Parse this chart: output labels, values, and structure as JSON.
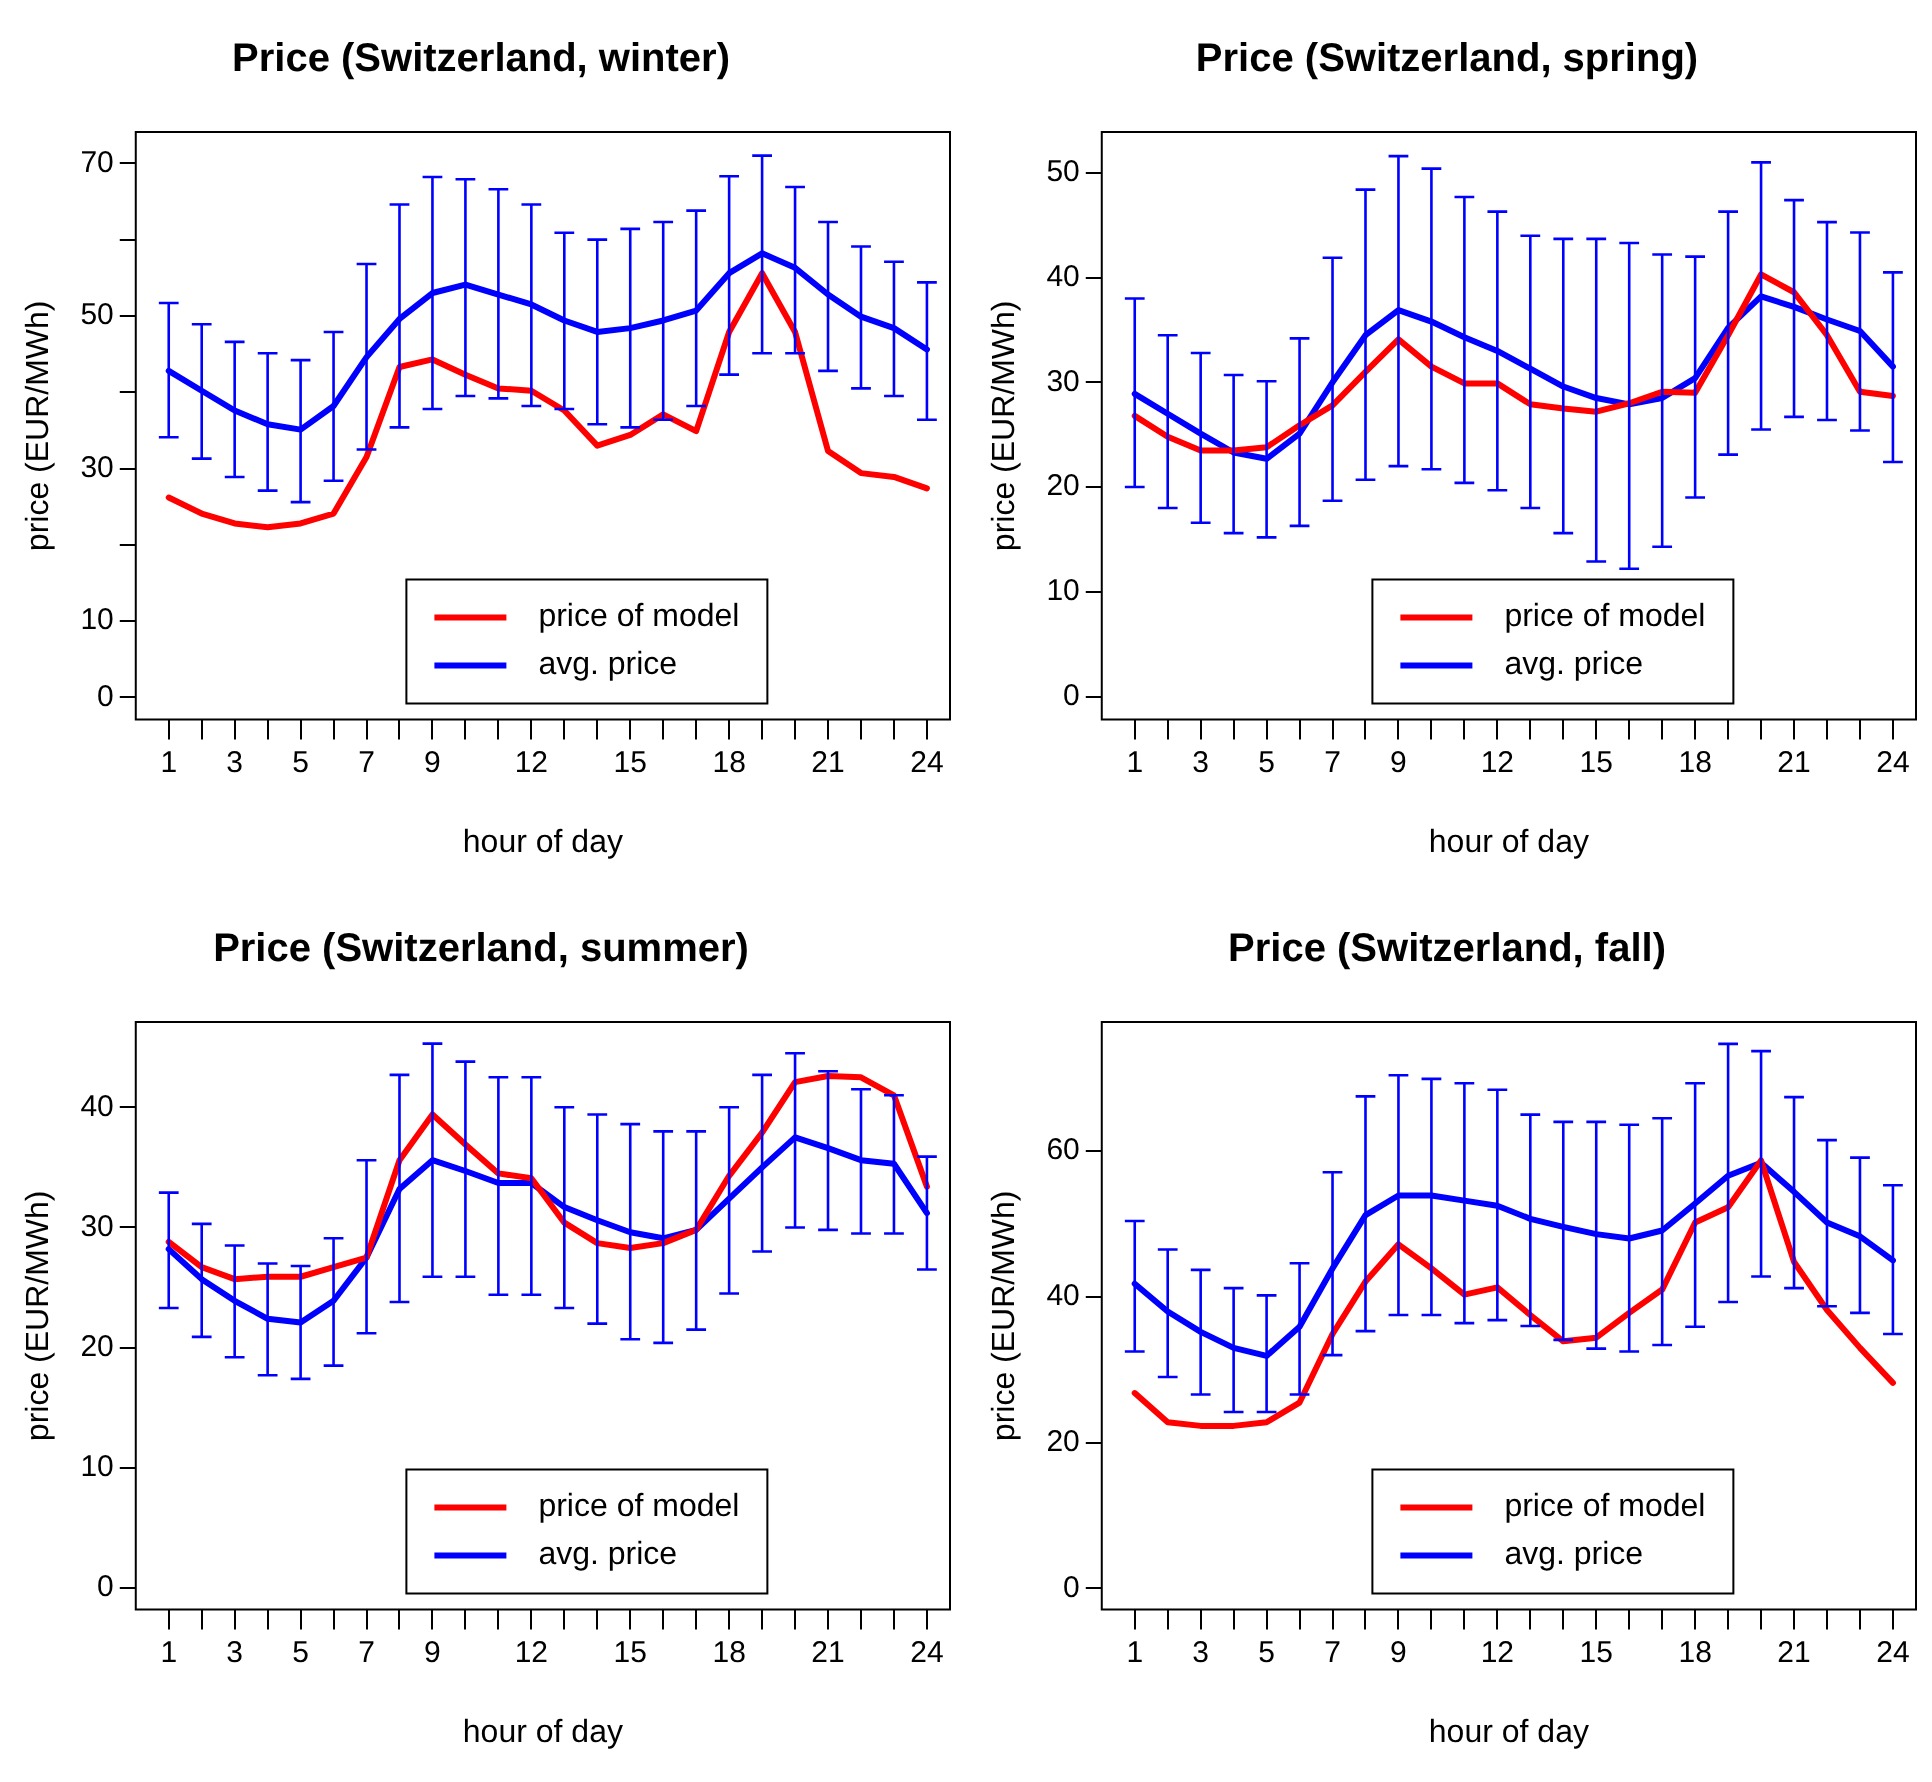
{
  "chart_data": [
    {
      "type": "line",
      "title": "Price (Switzerland, winter)",
      "xlabel": "hour of day",
      "ylabel": "price (EUR/MWh)",
      "legend": "bottom",
      "x": [
        1,
        2,
        3,
        4,
        5,
        6,
        7,
        8,
        9,
        10,
        11,
        12,
        13,
        14,
        15,
        16,
        17,
        18,
        19,
        20,
        21,
        22,
        23,
        24
      ],
      "xlim": [
        0,
        24.7
      ],
      "xticks": [
        1,
        {
          "value": 2,
          "label": null
        },
        3,
        {
          "value": 4,
          "label": null
        },
        5,
        {
          "value": 6,
          "label": null
        },
        7,
        {
          "value": 8,
          "label": null
        },
        9,
        {
          "value": 10,
          "label": null
        },
        {
          "value": 11,
          "label": null
        },
        12,
        {
          "value": 13,
          "label": null
        },
        {
          "value": 14,
          "label": null
        },
        15,
        {
          "value": 16,
          "label": null
        },
        {
          "value": 17,
          "label": null
        },
        18,
        {
          "value": 19,
          "label": null
        },
        {
          "value": 20,
          "label": null
        },
        21,
        {
          "value": 22,
          "label": null
        },
        {
          "value": 23,
          "label": null
        },
        24
      ],
      "ylim": [
        -2.9,
        74.1
      ],
      "yticks": [
        0,
        10,
        {
          "value": 20,
          "label": null
        },
        30,
        {
          "value": 40,
          "label": null
        },
        50,
        {
          "value": 60,
          "label": null
        },
        70
      ],
      "series": [
        {
          "name": "price of model",
          "color": "#ff0000",
          "values": [
            26.2,
            24.1,
            22.8,
            22.3,
            22.8,
            24.1,
            31.5,
            43.3,
            44.3,
            42.3,
            40.5,
            40.2,
            37.6,
            33.0,
            34.4,
            37.1,
            34.9,
            47.9,
            55.6,
            47.9,
            32.3,
            29.4,
            28.9,
            27.4
          ]
        },
        {
          "name": "avg. price",
          "color": "#0000ff",
          "values": [
            42.8,
            40.2,
            37.6,
            35.8,
            35.1,
            38.2,
            44.6,
            49.6,
            53.0,
            54.1,
            52.8,
            51.5,
            49.4,
            47.9,
            48.4,
            49.4,
            50.7,
            55.6,
            58.2,
            56.3,
            52.8,
            49.9,
            48.4,
            45.6
          ],
          "errors": [
            [
              34.1,
              51.7
            ],
            [
              31.3,
              48.9
            ],
            [
              28.9,
              46.6
            ],
            [
              27.1,
              45.1
            ],
            [
              25.6,
              44.2
            ],
            [
              28.4,
              47.9
            ],
            [
              32.5,
              56.8
            ],
            [
              35.4,
              64.6
            ],
            [
              37.8,
              68.2
            ],
            [
              39.5,
              67.9
            ],
            [
              39.2,
              66.6
            ],
            [
              38.2,
              64.6
            ],
            [
              37.8,
              60.9
            ],
            [
              35.8,
              60.0
            ],
            [
              35.4,
              61.4
            ],
            [
              36.4,
              62.3
            ],
            [
              38.2,
              63.8
            ],
            [
              42.3,
              68.3
            ],
            [
              45.1,
              71.0
            ],
            [
              45.1,
              66.9
            ],
            [
              42.8,
              62.3
            ],
            [
              40.5,
              59.1
            ],
            [
              39.5,
              57.1
            ],
            [
              36.4,
              54.4
            ]
          ]
        }
      ]
    },
    {
      "type": "line",
      "title": "Price (Switzerland, spring)",
      "xlabel": "hour of day",
      "ylabel": "price (EUR/MWh)",
      "legend": "bottom",
      "x": [
        1,
        2,
        3,
        4,
        5,
        6,
        7,
        8,
        9,
        10,
        11,
        12,
        13,
        14,
        15,
        16,
        17,
        18,
        19,
        20,
        21,
        22,
        23,
        24
      ],
      "xlim": [
        0,
        24.7
      ],
      "xticks": [
        1,
        {
          "value": 2,
          "label": null
        },
        3,
        {
          "value": 4,
          "label": null
        },
        5,
        {
          "value": 6,
          "label": null
        },
        7,
        {
          "value": 8,
          "label": null
        },
        9,
        {
          "value": 10,
          "label": null
        },
        {
          "value": 11,
          "label": null
        },
        12,
        {
          "value": 13,
          "label": null
        },
        {
          "value": 14,
          "label": null
        },
        15,
        {
          "value": 16,
          "label": null
        },
        {
          "value": 17,
          "label": null
        },
        18,
        {
          "value": 19,
          "label": null
        },
        {
          "value": 20,
          "label": null
        },
        21,
        {
          "value": 22,
          "label": null
        },
        {
          "value": 23,
          "label": null
        },
        24
      ],
      "ylim": [
        -2.2,
        53.9
      ],
      "yticks": [
        0,
        10,
        20,
        30,
        40,
        50
      ],
      "series": [
        {
          "name": "price of model",
          "color": "#ff0000",
          "values": [
            26.8,
            24.8,
            23.5,
            23.5,
            23.8,
            25.9,
            27.8,
            31.0,
            34.1,
            31.5,
            29.9,
            29.9,
            27.9,
            27.5,
            27.2,
            28.0,
            29.1,
            29.0,
            34.5,
            40.3,
            38.6,
            34.5,
            29.1,
            28.7
          ]
        },
        {
          "name": "avg. price",
          "color": "#0000ff",
          "values": [
            28.9,
            27.0,
            25.1,
            23.3,
            22.7,
            25.1,
            30.0,
            34.5,
            36.9,
            35.8,
            34.3,
            33.0,
            31.3,
            29.6,
            28.5,
            27.9,
            28.5,
            30.4,
            35.2,
            38.2,
            37.2,
            36.0,
            34.9,
            31.5
          ],
          "errors": [
            [
              20.0,
              38.0
            ],
            [
              18.0,
              34.5
            ],
            [
              16.6,
              32.8
            ],
            [
              15.6,
              30.7
            ],
            [
              15.2,
              30.1
            ],
            [
              16.3,
              34.2
            ],
            [
              18.7,
              41.9
            ],
            [
              20.7,
              48.4
            ],
            [
              22.0,
              51.6
            ],
            [
              21.7,
              50.4
            ],
            [
              20.4,
              47.7
            ],
            [
              19.7,
              46.3
            ],
            [
              18.0,
              44.0
            ],
            [
              15.6,
              43.7
            ],
            [
              12.9,
              43.7
            ],
            [
              12.2,
              43.3
            ],
            [
              14.3,
              42.2
            ],
            [
              19.0,
              42.0
            ],
            [
              23.1,
              46.3
            ],
            [
              25.5,
              51.0
            ],
            [
              26.7,
              47.4
            ],
            [
              26.4,
              45.3
            ],
            [
              25.4,
              44.3
            ],
            [
              22.4,
              40.5
            ]
          ]
        }
      ]
    },
    {
      "type": "line",
      "title": "Price (Switzerland, summer)",
      "xlabel": "hour of day",
      "ylabel": "price (EUR/MWh)",
      "legend": "bottom",
      "x": [
        1,
        2,
        3,
        4,
        5,
        6,
        7,
        8,
        9,
        10,
        11,
        12,
        13,
        14,
        15,
        16,
        17,
        18,
        19,
        20,
        21,
        22,
        23,
        24
      ],
      "xlim": [
        0,
        24.7
      ],
      "xticks": [
        1,
        {
          "value": 2,
          "label": null
        },
        3,
        {
          "value": 4,
          "label": null
        },
        5,
        {
          "value": 6,
          "label": null
        },
        7,
        {
          "value": 8,
          "label": null
        },
        9,
        {
          "value": 10,
          "label": null
        },
        {
          "value": 11,
          "label": null
        },
        12,
        {
          "value": 13,
          "label": null
        },
        {
          "value": 14,
          "label": null
        },
        15,
        {
          "value": 16,
          "label": null
        },
        {
          "value": 17,
          "label": null
        },
        18,
        {
          "value": 19,
          "label": null
        },
        {
          "value": 20,
          "label": null
        },
        21,
        {
          "value": 22,
          "label": null
        },
        {
          "value": 23,
          "label": null
        },
        24
      ],
      "ylim": [
        -1.8,
        47.1
      ],
      "yticks": [
        0,
        10,
        20,
        30,
        40
      ],
      "series": [
        {
          "name": "price of model",
          "color": "#ff0000",
          "values": [
            28.8,
            26.7,
            25.7,
            25.9,
            25.9,
            26.7,
            27.5,
            35.6,
            39.4,
            36.9,
            34.5,
            34.1,
            30.4,
            28.7,
            28.3,
            28.7,
            29.8,
            34.3,
            37.9,
            42.1,
            42.6,
            42.5,
            41.0,
            33.4
          ]
        },
        {
          "name": "avg. price",
          "color": "#0000ff",
          "values": [
            28.2,
            25.7,
            23.9,
            22.4,
            22.1,
            23.9,
            27.5,
            33.2,
            35.6,
            34.7,
            33.7,
            33.7,
            31.7,
            30.6,
            29.6,
            29.1,
            29.8,
            32.4,
            35.0,
            37.5,
            36.6,
            35.6,
            35.3,
            31.2
          ],
          "errors": [
            [
              23.3,
              32.9
            ],
            [
              20.9,
              30.3
            ],
            [
              19.2,
              28.5
            ],
            [
              17.7,
              27.0
            ],
            [
              17.4,
              26.8
            ],
            [
              18.5,
              29.1
            ],
            [
              21.2,
              35.6
            ],
            [
              23.8,
              42.7
            ],
            [
              25.9,
              45.3
            ],
            [
              25.9,
              43.8
            ],
            [
              24.4,
              42.5
            ],
            [
              24.4,
              42.5
            ],
            [
              23.3,
              40.0
            ],
            [
              22.0,
              39.4
            ],
            [
              20.7,
              38.6
            ],
            [
              20.4,
              38.0
            ],
            [
              21.5,
              38.0
            ],
            [
              24.5,
              40.0
            ],
            [
              28.0,
              42.7
            ],
            [
              30.0,
              44.5
            ],
            [
              29.8,
              43.0
            ],
            [
              29.5,
              41.5
            ],
            [
              29.5,
              41.0
            ],
            [
              26.5,
              35.9
            ]
          ]
        }
      ]
    },
    {
      "type": "line",
      "title": "Price (Switzerland, fall)",
      "xlabel": "hour of day",
      "ylabel": "price (EUR/MWh)",
      "legend": "bottom",
      "x": [
        1,
        2,
        3,
        4,
        5,
        6,
        7,
        8,
        9,
        10,
        11,
        12,
        13,
        14,
        15,
        16,
        17,
        18,
        19,
        20,
        21,
        22,
        23,
        24
      ],
      "xlim": [
        0,
        24.7
      ],
      "xticks": [
        1,
        {
          "value": 2,
          "label": null
        },
        3,
        {
          "value": 4,
          "label": null
        },
        5,
        {
          "value": 6,
          "label": null
        },
        7,
        {
          "value": 8,
          "label": null
        },
        9,
        {
          "value": 10,
          "label": null
        },
        {
          "value": 11,
          "label": null
        },
        12,
        {
          "value": 13,
          "label": null
        },
        {
          "value": 14,
          "label": null
        },
        15,
        {
          "value": 16,
          "label": null
        },
        {
          "value": 17,
          "label": null
        },
        18,
        {
          "value": 19,
          "label": null
        },
        {
          "value": 20,
          "label": null
        },
        21,
        {
          "value": 22,
          "label": null
        },
        {
          "value": 23,
          "label": null
        },
        24
      ],
      "ylim": [
        -2.9,
        77.7
      ],
      "yticks": [
        0,
        20,
        40,
        60
      ],
      "series": [
        {
          "name": "price of model",
          "color": "#ff0000",
          "values": [
            26.8,
            22.8,
            22.3,
            22.3,
            22.8,
            25.5,
            34.9,
            42.1,
            47.2,
            43.9,
            40.3,
            41.3,
            37.5,
            33.9,
            34.4,
            37.8,
            41.0,
            50.2,
            52.3,
            58.7,
            44.8,
            38.2,
            33.0,
            28.2
          ]
        },
        {
          "name": "avg. price",
          "color": "#0000ff",
          "values": [
            41.8,
            38.0,
            35.2,
            33.0,
            31.9,
            35.9,
            43.9,
            51.2,
            53.9,
            53.9,
            53.2,
            52.5,
            50.7,
            49.6,
            48.6,
            48.0,
            49.1,
            52.8,
            56.6,
            58.4,
            54.4,
            50.2,
            48.3,
            45.0
          ],
          "errors": [
            [
              32.5,
              50.4
            ],
            [
              29.0,
              46.5
            ],
            [
              26.6,
              43.7
            ],
            [
              24.2,
              41.2
            ],
            [
              24.2,
              40.2
            ],
            [
              26.6,
              44.6
            ],
            [
              32.0,
              57.1
            ],
            [
              35.3,
              67.5
            ],
            [
              37.5,
              70.4
            ],
            [
              37.5,
              69.9
            ],
            [
              36.4,
              69.3
            ],
            [
              36.8,
              68.4
            ],
            [
              36.0,
              65.0
            ],
            [
              34.1,
              64.0
            ],
            [
              32.9,
              64.0
            ],
            [
              32.5,
              63.6
            ],
            [
              33.4,
              64.5
            ],
            [
              35.9,
              69.3
            ],
            [
              39.3,
              74.7
            ],
            [
              42.8,
              73.7
            ],
            [
              41.2,
              67.4
            ],
            [
              38.7,
              61.5
            ],
            [
              37.8,
              59.1
            ],
            [
              34.9,
              55.3
            ]
          ]
        }
      ]
    }
  ]
}
